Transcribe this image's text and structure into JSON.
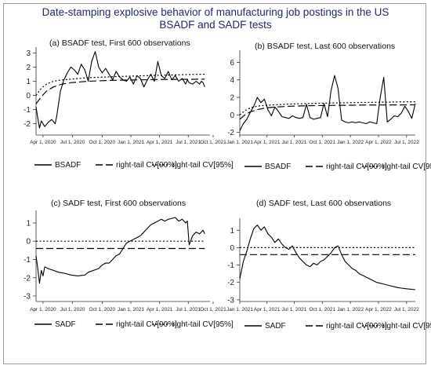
{
  "title_lines": [
    "Date-stamping explosive behavior of manufacturing job postings in the US",
    "BSADF and SADF tests"
  ],
  "chart_data": [
    {
      "type": "line",
      "title": "(a) BSADF test, First 600 observations",
      "x_tick_labels": [
        "Apr 1, 2020",
        "Jul 1, 2020",
        "Oct 1, 2020",
        "Jan 1, 2021",
        "Apr 1, 2021",
        "Jul 1, 2021",
        "Oct 1, 2021"
      ],
      "x_tick_positions": [
        0.04,
        0.21,
        0.38,
        0.545,
        0.71,
        0.875,
        1.04
      ],
      "ylim": [
        -2.8,
        3.3
      ],
      "yticks": [
        -2,
        -1,
        0,
        1,
        2,
        3
      ],
      "legend": [
        "BSADF",
        "right-tail CV[90%]",
        "right-tail CV[95%]"
      ],
      "series": [
        {
          "name": "BSADF",
          "style": "solid",
          "x": [
            0.0,
            0.01,
            0.02,
            0.03,
            0.05,
            0.07,
            0.09,
            0.11,
            0.12,
            0.14,
            0.16,
            0.18,
            0.2,
            0.22,
            0.24,
            0.26,
            0.28,
            0.3,
            0.32,
            0.34,
            0.36,
            0.38,
            0.4,
            0.42,
            0.44,
            0.46,
            0.48,
            0.5,
            0.52,
            0.54,
            0.56,
            0.58,
            0.6,
            0.62,
            0.64,
            0.66,
            0.68,
            0.7,
            0.72,
            0.74,
            0.76,
            0.78,
            0.8,
            0.82,
            0.84,
            0.86,
            0.87,
            0.88,
            0.9,
            0.92,
            0.94,
            0.95,
            0.96,
            0.97
          ],
          "y": [
            -0.8,
            -1.6,
            -2.3,
            -1.8,
            -2.2,
            -1.9,
            -1.7,
            -2.0,
            -1.4,
            0.3,
            1.1,
            1.6,
            2.0,
            1.8,
            1.5,
            2.2,
            1.8,
            1.0,
            2.4,
            3.1,
            2.0,
            1.6,
            1.9,
            1.5,
            1.1,
            1.7,
            1.3,
            1.1,
            1.0,
            1.3,
            0.8,
            1.4,
            1.2,
            0.6,
            1.1,
            1.5,
            1.0,
            2.4,
            1.4,
            1.2,
            1.7,
            1.1,
            1.4,
            1.0,
            1.2,
            0.8,
            1.1,
            0.9,
            0.8,
            1.0,
            0.8,
            1.0,
            0.9,
            0.6
          ]
        },
        {
          "name": "right-tail CV[90%]",
          "style": "dash",
          "x": [
            0.0,
            0.03,
            0.06,
            0.1,
            0.15,
            0.2,
            0.3,
            0.4,
            0.5,
            0.6,
            0.7,
            0.8,
            0.9,
            0.97
          ],
          "y": [
            -0.6,
            -0.1,
            0.3,
            0.6,
            0.8,
            0.9,
            1.0,
            1.05,
            1.08,
            1.1,
            1.12,
            1.13,
            1.14,
            1.15
          ]
        },
        {
          "name": "right-tail CV[95%]",
          "style": "dot",
          "x": [
            0.0,
            0.03,
            0.06,
            0.1,
            0.15,
            0.2,
            0.3,
            0.4,
            0.5,
            0.6,
            0.7,
            0.8,
            0.9,
            0.97
          ],
          "y": [
            0.0,
            0.5,
            0.8,
            1.0,
            1.1,
            1.15,
            1.25,
            1.3,
            1.35,
            1.38,
            1.42,
            1.45,
            1.48,
            1.5
          ]
        }
      ]
    },
    {
      "type": "line",
      "title": "(b) BSADF test, Last 600 observations",
      "x_tick_labels": [
        "Jan 1, 2021",
        "Apr 1, 2021",
        "Jul 1, 2021",
        "Oct 1, 2021",
        "Jan 1, 2022",
        "Apr 1, 2022",
        "Jul 1, 2022"
      ],
      "x_tick_positions": [
        0.0,
        0.155,
        0.31,
        0.47,
        0.63,
        0.79,
        0.95
      ],
      "ylim": [
        -2.3,
        7.2
      ],
      "yticks": [
        -2,
        0,
        2,
        4,
        6
      ],
      "legend": [
        "BSADF",
        "right-tail CV[90%]",
        "right-tail CV[95%]"
      ],
      "series": [
        {
          "name": "BSADF",
          "style": "solid",
          "x": [
            0.0,
            0.02,
            0.04,
            0.06,
            0.08,
            0.1,
            0.12,
            0.14,
            0.16,
            0.18,
            0.2,
            0.22,
            0.24,
            0.26,
            0.28,
            0.3,
            0.32,
            0.34,
            0.36,
            0.38,
            0.4,
            0.42,
            0.44,
            0.46,
            0.48,
            0.5,
            0.52,
            0.54,
            0.56,
            0.58,
            0.6,
            0.62,
            0.64,
            0.66,
            0.68,
            0.7,
            0.72,
            0.74,
            0.76,
            0.78,
            0.8,
            0.82,
            0.84,
            0.86,
            0.88,
            0.9,
            0.92,
            0.94,
            0.96,
            0.98,
            1.0
          ],
          "y": [
            -1.8,
            -1.0,
            -0.5,
            0.3,
            1.0,
            2.0,
            1.4,
            1.8,
            0.6,
            -0.1,
            0.9,
            0.4,
            -0.2,
            -0.3,
            -0.4,
            -0.1,
            -0.3,
            -0.4,
            -0.3,
            1.2,
            -0.3,
            -0.5,
            -0.4,
            -0.3,
            1.3,
            -0.2,
            2.8,
            4.5,
            3.0,
            -0.6,
            -0.8,
            -0.9,
            -0.8,
            -0.9,
            -0.8,
            -0.9,
            -1.0,
            -0.8,
            -0.9,
            -1.0,
            2.0,
            4.3,
            -0.8,
            -0.5,
            -0.1,
            -0.2,
            0.2,
            1.0,
            0.4,
            -0.4,
            1.3
          ]
        },
        {
          "name": "right-tail CV[90%]",
          "style": "dash",
          "x": [
            0.0,
            0.03,
            0.06,
            0.1,
            0.15,
            0.2,
            0.3,
            0.4,
            0.5,
            0.6,
            0.7,
            0.8,
            0.9,
            1.0
          ],
          "y": [
            -0.5,
            0.0,
            0.35,
            0.6,
            0.8,
            0.9,
            1.0,
            1.05,
            1.08,
            1.1,
            1.12,
            1.13,
            1.14,
            1.15
          ]
        },
        {
          "name": "right-tail CV[95%]",
          "style": "dot",
          "x": [
            0.0,
            0.03,
            0.06,
            0.1,
            0.15,
            0.2,
            0.3,
            0.4,
            0.5,
            0.6,
            0.7,
            0.8,
            0.9,
            1.0
          ],
          "y": [
            0.0,
            0.5,
            0.8,
            1.0,
            1.1,
            1.15,
            1.25,
            1.3,
            1.35,
            1.38,
            1.42,
            1.45,
            1.48,
            1.5
          ]
        }
      ]
    },
    {
      "type": "line",
      "title": "(c) SADF test, First 600 observations",
      "x_tick_labels": [
        "Apr 1, 2020",
        "Jul 1, 2020",
        "Oct 1, 2020",
        "Jan 1, 2021",
        "Apr 1, 2021",
        "Jul 1, 2021",
        "Oct 1, 2021"
      ],
      "x_tick_positions": [
        0.04,
        0.21,
        0.38,
        0.545,
        0.71,
        0.875,
        1.04
      ],
      "ylim": [
        -3.3,
        1.6
      ],
      "yticks": [
        -3,
        -2,
        -1,
        0,
        1
      ],
      "legend": [
        "SADF",
        "right-tail CV[90%]",
        "right-tail CV[95%]"
      ],
      "series": [
        {
          "name": "SADF",
          "style": "solid",
          "x": [
            0.0,
            0.01,
            0.02,
            0.03,
            0.04,
            0.05,
            0.07,
            0.1,
            0.13,
            0.16,
            0.2,
            0.24,
            0.28,
            0.3,
            0.33,
            0.36,
            0.38,
            0.4,
            0.42,
            0.44,
            0.46,
            0.48,
            0.5,
            0.52,
            0.54,
            0.56,
            0.58,
            0.6,
            0.62,
            0.64,
            0.66,
            0.68,
            0.7,
            0.72,
            0.74,
            0.76,
            0.78,
            0.8,
            0.82,
            0.84,
            0.86,
            0.87,
            0.88,
            0.9,
            0.92,
            0.94,
            0.96,
            0.97
          ],
          "y": [
            -0.8,
            -1.5,
            -2.3,
            -1.6,
            -1.9,
            -1.4,
            -1.5,
            -1.6,
            -1.7,
            -1.75,
            -1.85,
            -1.9,
            -1.85,
            -1.7,
            -1.6,
            -1.5,
            -1.3,
            -1.2,
            -1.2,
            -1.0,
            -0.8,
            -0.7,
            -0.4,
            -0.1,
            0.0,
            0.1,
            0.2,
            0.3,
            0.5,
            0.7,
            0.9,
            1.0,
            1.1,
            1.2,
            1.1,
            1.2,
            1.25,
            1.3,
            1.1,
            1.2,
            1.0,
            1.1,
            -0.2,
            0.3,
            0.5,
            0.4,
            0.6,
            0.4
          ]
        },
        {
          "name": "right-tail CV[90%]",
          "style": "dash",
          "x": [
            0.0,
            0.97
          ],
          "y": [
            -0.4,
            -0.4
          ]
        },
        {
          "name": "right-tail CV[95%]",
          "style": "dot",
          "x": [
            0.0,
            0.97
          ],
          "y": [
            0.0,
            0.0
          ]
        }
      ]
    },
    {
      "type": "line",
      "title": "(d) SADF test, Last 600 observations",
      "x_tick_labels": [
        "Jan 1, 2021",
        "Apr 1, 2021",
        "Jul 1, 2021",
        "Oct 1, 2021",
        "Jan 1, 2022",
        "Apr 1, 2022",
        "Jul 1, 2022"
      ],
      "x_tick_positions": [
        0.0,
        0.155,
        0.31,
        0.47,
        0.63,
        0.79,
        0.95
      ],
      "ylim": [
        -3.1,
        1.6
      ],
      "yticks": [
        -3,
        -2,
        -1,
        0,
        1
      ],
      "legend": [
        "SADF",
        "right-tail CV[90%]",
        "right-tail CV[95%]"
      ],
      "series": [
        {
          "name": "SADF",
          "style": "solid",
          "x": [
            0.0,
            0.02,
            0.04,
            0.06,
            0.08,
            0.1,
            0.12,
            0.14,
            0.16,
            0.18,
            0.2,
            0.22,
            0.24,
            0.26,
            0.28,
            0.3,
            0.32,
            0.34,
            0.36,
            0.38,
            0.4,
            0.42,
            0.44,
            0.46,
            0.48,
            0.5,
            0.52,
            0.54,
            0.56,
            0.58,
            0.6,
            0.62,
            0.64,
            0.66,
            0.68,
            0.7,
            0.72,
            0.74,
            0.76,
            0.78,
            0.8,
            0.82,
            0.84,
            0.86,
            0.88,
            0.9,
            0.92,
            0.94,
            0.96,
            0.98,
            1.0
          ],
          "y": [
            -1.8,
            -0.8,
            -0.2,
            0.5,
            1.1,
            1.3,
            1.0,
            1.2,
            0.8,
            0.6,
            0.3,
            0.5,
            0.2,
            0.0,
            -0.1,
            0.1,
            -0.3,
            -0.6,
            -0.8,
            -1.0,
            -1.1,
            -0.9,
            -1.0,
            -0.8,
            -0.7,
            -0.5,
            -0.3,
            0.0,
            0.1,
            -0.4,
            -0.8,
            -1.0,
            -1.2,
            -1.3,
            -1.5,
            -1.6,
            -1.7,
            -1.8,
            -1.9,
            -2.0,
            -2.05,
            -2.1,
            -2.15,
            -2.2,
            -2.25,
            -2.3,
            -2.33,
            -2.36,
            -2.38,
            -2.4,
            -2.42
          ]
        },
        {
          "name": "right-tail CV[90%]",
          "style": "dash",
          "x": [
            0.0,
            1.0
          ],
          "y": [
            -0.4,
            -0.4
          ]
        },
        {
          "name": "right-tail CV[95%]",
          "style": "dot",
          "x": [
            0.0,
            1.0
          ],
          "y": [
            0.0,
            0.0
          ]
        }
      ]
    }
  ]
}
